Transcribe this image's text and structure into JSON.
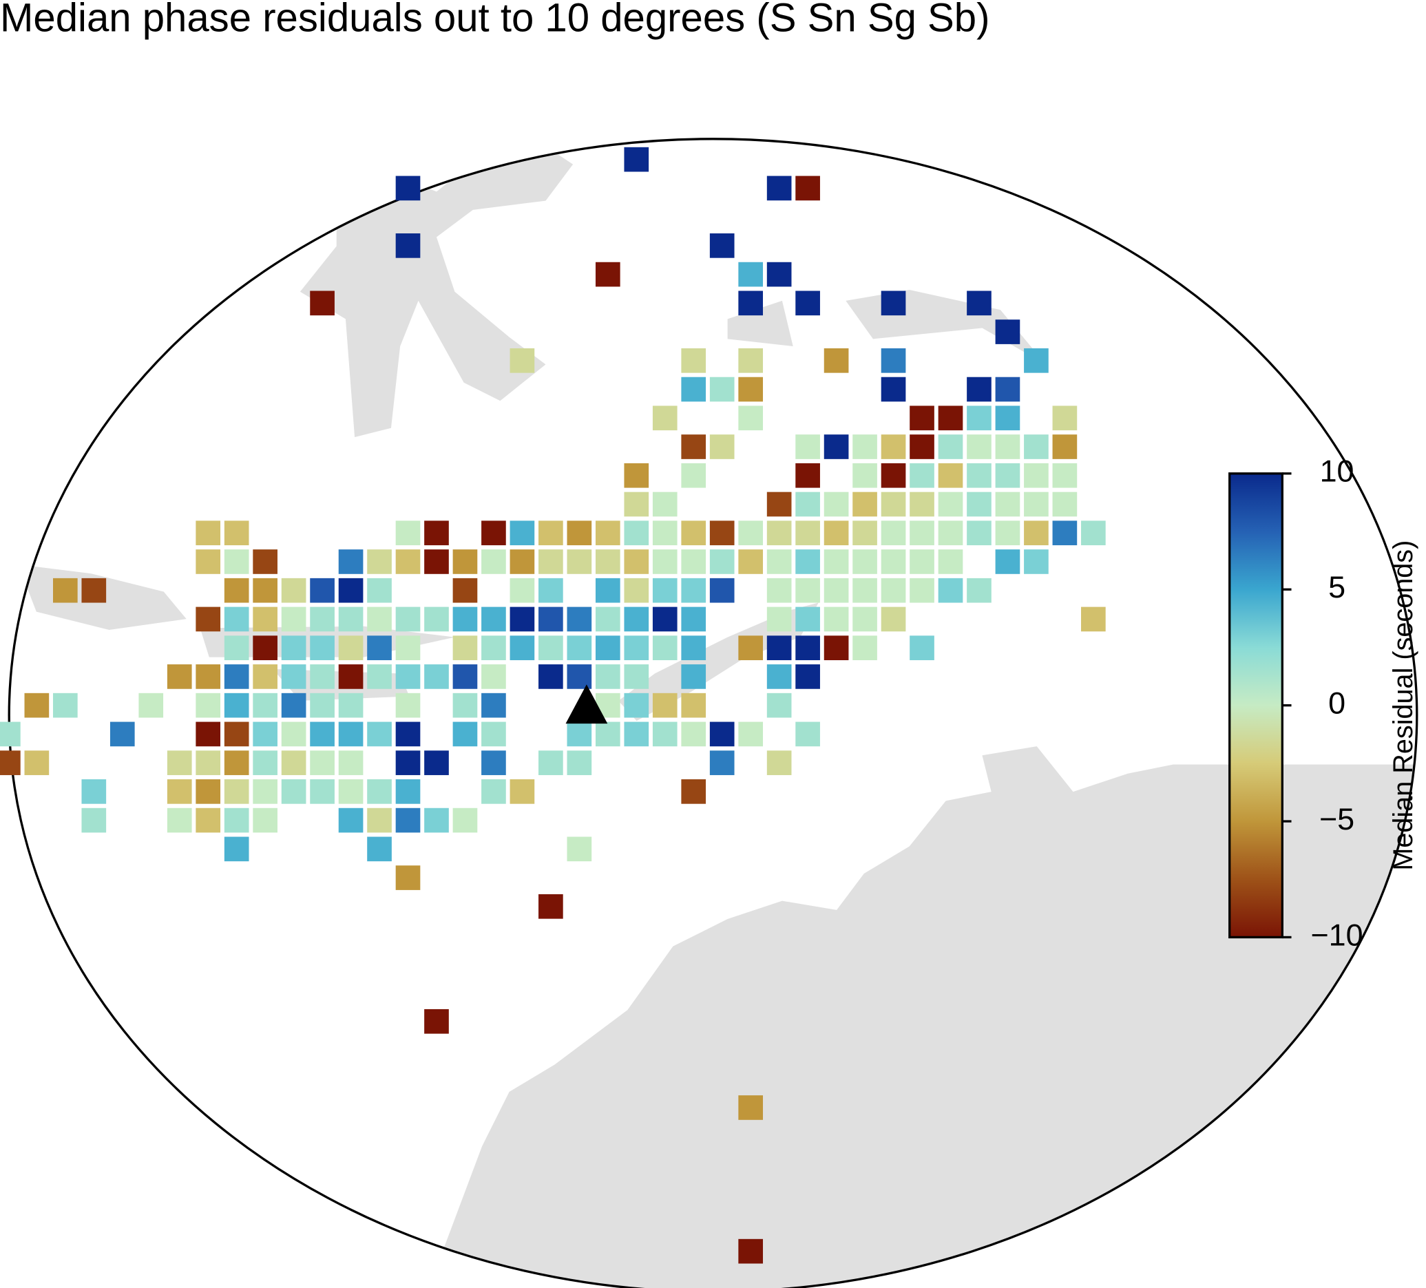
{
  "chart_data": {
    "type": "map",
    "title": "Median phase residuals out to 10 degrees (S Sn Sg Sb)",
    "rows": [
      {
        "y": -19,
        "x": [
          2
        ],
        "values": [
          10
        ]
      },
      {
        "y": -18,
        "x": [
          -6,
          7,
          8
        ],
        "values": [
          10,
          10,
          -10
        ]
      },
      {
        "y": -16,
        "x": [
          -6,
          5
        ],
        "values": [
          10,
          10
        ]
      },
      {
        "y": -15,
        "x": [
          1,
          6,
          7
        ],
        "values": [
          -10,
          4.5,
          10
        ]
      },
      {
        "y": -14,
        "x": [
          -9,
          6,
          8,
          11,
          14
        ],
        "values": [
          -10,
          10,
          10,
          10,
          10
        ]
      },
      {
        "y": -13,
        "x": [
          15
        ],
        "values": [
          10
        ]
      },
      {
        "y": -12,
        "x": [
          -2,
          4,
          6,
          9,
          11,
          16
        ],
        "values": [
          -1.5,
          -1.5,
          -1.5,
          -5,
          6.5,
          4.5
        ]
      },
      {
        "y": -11,
        "x": [
          4,
          5,
          6,
          11,
          14,
          15
        ],
        "values": [
          4.5,
          1.5,
          -5,
          10,
          10,
          8
        ]
      },
      {
        "y": -10,
        "x": [
          3,
          6,
          12,
          13,
          14,
          15,
          17
        ],
        "values": [
          -1.5,
          0,
          -10,
          -10,
          3,
          4.5,
          -1.5
        ]
      },
      {
        "y": -9,
        "x": [
          4,
          5,
          8,
          9,
          10,
          11,
          12,
          13,
          14,
          15,
          16,
          17
        ],
        "values": [
          -8,
          -1.5,
          0,
          10,
          0,
          -3,
          -10,
          1.5,
          0,
          0,
          1.5,
          -5
        ]
      },
      {
        "y": -8,
        "x": [
          2,
          4,
          8,
          10,
          11,
          12,
          13,
          14,
          15,
          16,
          17
        ],
        "values": [
          -5,
          0,
          -10,
          0,
          -10,
          1.5,
          -3,
          1.5,
          1.5,
          0,
          0
        ]
      },
      {
        "y": -7,
        "x": [
          2,
          3,
          7,
          8,
          9,
          10,
          11,
          12,
          13,
          14,
          15,
          16,
          17
        ],
        "values": [
          -1.5,
          0,
          -8,
          1.5,
          0,
          -3,
          -1.5,
          -1.5,
          0,
          1.5,
          0,
          0,
          0
        ]
      },
      {
        "y": -6,
        "x": [
          -13,
          -12,
          -6,
          -5,
          -3,
          -2,
          -1,
          0,
          1,
          2,
          3,
          4,
          5,
          6,
          7,
          8,
          9,
          10,
          11,
          12,
          13,
          14,
          15,
          16,
          17,
          18
        ],
        "values": [
          -3,
          -3,
          0,
          -10,
          -10,
          4.5,
          -3,
          -5,
          -3,
          1.5,
          0,
          -3,
          -8,
          0,
          -1.5,
          -1.5,
          -3,
          -1.5,
          0,
          0,
          0,
          1.5,
          0,
          -3,
          6.5,
          1.5
        ]
      },
      {
        "y": -5,
        "x": [
          -13,
          -12,
          -11,
          -8,
          -7,
          -6,
          -5,
          -4,
          -3,
          -2,
          -1,
          0,
          1,
          2,
          3,
          4,
          5,
          6,
          7,
          8,
          9,
          10,
          11,
          12,
          13,
          15,
          16
        ],
        "values": [
          -3,
          0,
          -8,
          6.5,
          -1.5,
          -3,
          -10,
          -5,
          0,
          -5,
          -1.5,
          -1.5,
          -1.5,
          -3,
          0,
          0,
          1.5,
          -3,
          0,
          3,
          0,
          0,
          0,
          0,
          0,
          4.5,
          3
        ]
      },
      {
        "y": -4,
        "x": [
          -18,
          -17,
          -12,
          -11,
          -10,
          -9,
          -8,
          -7,
          -4,
          -2,
          -1,
          1,
          2,
          3,
          4,
          5,
          7,
          8,
          9,
          10,
          11,
          12,
          13,
          14
        ],
        "values": [
          -5,
          -8,
          -5,
          -5,
          -1.5,
          8,
          10,
          1.5,
          -8,
          0,
          3,
          4.5,
          -1.5,
          3,
          3,
          8,
          0,
          0,
          0,
          0,
          0,
          0,
          3,
          1.5
        ]
      },
      {
        "y": -3,
        "x": [
          -13,
          -12,
          -11,
          -10,
          -9,
          -8,
          -7,
          -6,
          -5,
          -4,
          -3,
          -2,
          -1,
          0,
          1,
          2,
          3,
          4,
          7,
          8,
          9,
          10,
          11,
          18
        ],
        "values": [
          -8,
          3,
          -3,
          0,
          1.5,
          1.5,
          0,
          1.5,
          1.5,
          4.5,
          4.5,
          10,
          8,
          6.5,
          1.5,
          4.5,
          10,
          4.5,
          0,
          3,
          0,
          0,
          -1.5,
          -3
        ]
      },
      {
        "y": -2,
        "x": [
          -12,
          -11,
          -10,
          -9,
          -8,
          -7,
          -6,
          -4,
          -3,
          -2,
          -1,
          0,
          1,
          2,
          3,
          4,
          6,
          7,
          8,
          9,
          10,
          12
        ],
        "values": [
          1.5,
          -10,
          3,
          3,
          -1.5,
          6.5,
          0,
          -1.5,
          1.5,
          4.5,
          1.5,
          3,
          4.5,
          3,
          1.5,
          4.5,
          -5,
          10,
          10,
          -10,
          0,
          3
        ]
      },
      {
        "y": -1,
        "x": [
          -14,
          -13,
          -12,
          -11,
          -10,
          -9,
          -8,
          -7,
          -6,
          -5,
          -4,
          -3,
          -1,
          0,
          1,
          2,
          4,
          7,
          8
        ],
        "values": [
          -5,
          -5,
          6.5,
          -3,
          3,
          1.5,
          -10,
          1.5,
          3,
          3,
          8,
          0,
          10,
          8,
          1.5,
          1.5,
          4.5,
          4.5,
          10
        ]
      },
      {
        "y": 0,
        "x": [
          -19,
          -18,
          -15,
          -13,
          -12,
          -11,
          -10,
          -9,
          -8,
          -6,
          -4,
          -3,
          1,
          2,
          3,
          4,
          7
        ],
        "values": [
          -5,
          1.5,
          0,
          0,
          4.5,
          1.5,
          6.5,
          1.5,
          1.5,
          0,
          1.5,
          6.5,
          0,
          3,
          -3,
          -3,
          1.5
        ]
      },
      {
        "y": 1,
        "x": [
          -20,
          -16,
          -13,
          -12,
          -11,
          -10,
          -9,
          -8,
          -7,
          -6,
          -4,
          -3,
          0,
          1,
          2,
          3,
          4,
          5,
          6,
          8
        ],
        "values": [
          1.5,
          6.5,
          -10,
          -8,
          3,
          0,
          4.5,
          4.5,
          3,
          10,
          4.5,
          1.5,
          3,
          1.5,
          3,
          1.5,
          0,
          10,
          0,
          1.5
        ]
      },
      {
        "y": 2,
        "x": [
          -20,
          -19,
          -14,
          -13,
          -12,
          -11,
          -10,
          -9,
          -8,
          -6,
          -5,
          -3,
          -1,
          0,
          5,
          7
        ],
        "values": [
          -8,
          -3,
          -1.5,
          -1.5,
          -5,
          1.5,
          -1.5,
          0,
          0,
          10,
          10,
          6.5,
          1.5,
          1.5,
          6.5,
          -1.5
        ]
      },
      {
        "y": 3,
        "x": [
          -17,
          -14,
          -13,
          -12,
          -11,
          -10,
          -9,
          -8,
          -7,
          -6,
          -3,
          -2,
          4
        ],
        "values": [
          3,
          -3,
          -5,
          -1.5,
          0,
          1.5,
          1.5,
          0,
          1.5,
          4.5,
          1.5,
          -3,
          -8
        ]
      },
      {
        "y": 4,
        "x": [
          -17,
          -14,
          -13,
          -12,
          -11,
          -8,
          -7,
          -6,
          -5,
          -4
        ],
        "values": [
          1.5,
          0,
          -3,
          1.5,
          0,
          4.5,
          -1.5,
          6.5,
          3,
          0
        ]
      },
      {
        "y": 5,
        "x": [
          -12,
          -7,
          0
        ],
        "values": [
          4.5,
          4.5,
          0
        ]
      },
      {
        "y": 6,
        "x": [
          -6
        ],
        "values": [
          -5
        ]
      },
      {
        "y": 7,
        "x": [
          -1
        ],
        "values": [
          -10
        ]
      },
      {
        "y": 11,
        "x": [
          -5
        ],
        "values": [
          -10
        ]
      },
      {
        "y": 14,
        "x": [
          6
        ],
        "values": [
          -5
        ]
      },
      {
        "y": 19,
        "x": [
          6
        ],
        "values": [
          -10
        ]
      }
    ],
    "colorbar": {
      "label": "Median Residual (seconds)",
      "lim": [
        -10,
        10
      ],
      "ticks": [
        {
          "value": -10,
          "label": "−10"
        },
        {
          "value": -5,
          "label": "−5"
        },
        0,
        5,
        10
      ],
      "colors": [
        "#7a1405",
        "#9e5218",
        "#c0963a",
        "#d6cb78",
        "#c6ebc4",
        "#8adbd6",
        "#3aa6cf",
        "#2561b4",
        "#0a2a8c"
      ]
    }
  }
}
